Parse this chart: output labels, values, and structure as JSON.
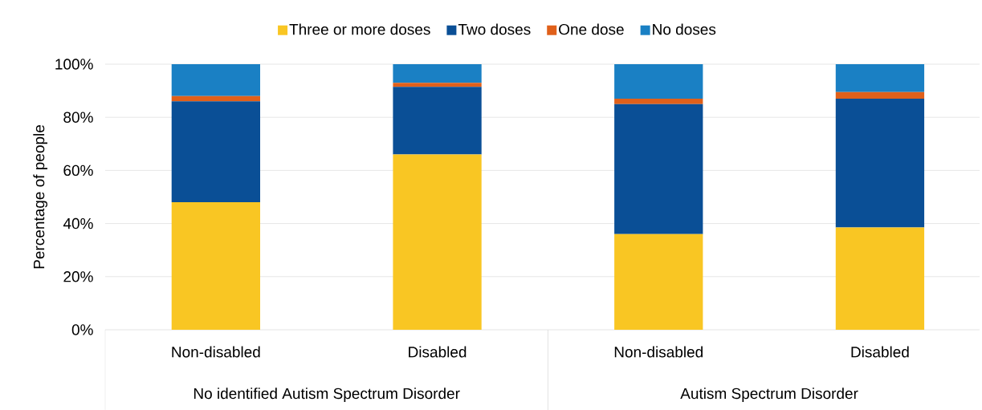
{
  "chart_data": {
    "type": "bar",
    "stacked": true,
    "ylabel": "Percentage of people",
    "categories": [
      "Non-disabled",
      "Disabled",
      "Non-disabled",
      "Disabled"
    ],
    "annotations": [
      "No identified Autism Spectrum Disorder",
      "Autism Spectrum Disorder"
    ],
    "series": [
      {
        "name": "Three or more doses",
        "color": "#f9c623",
        "values": [
          48,
          66,
          36,
          38.5
        ]
      },
      {
        "name": "Two doses",
        "color": "#0a4f96",
        "values": [
          38,
          25.5,
          49,
          48.5
        ]
      },
      {
        "name": "One dose",
        "color": "#e0601a",
        "values": [
          2,
          1.5,
          2,
          2.5
        ]
      },
      {
        "name": "No doses",
        "color": "#1a80c4",
        "values": [
          12,
          7,
          13,
          10.5
        ]
      }
    ],
    "ylim": [
      0,
      100
    ],
    "yticks": [
      {
        "value": 0,
        "label": "0%"
      },
      {
        "value": 20,
        "label": "20%"
      },
      {
        "value": 40,
        "label": "40%"
      },
      {
        "value": 60,
        "label": "60%"
      },
      {
        "value": 80,
        "label": "80%"
      },
      {
        "value": 100,
        "label": "100%"
      }
    ],
    "grid": "y",
    "legend": "top"
  }
}
